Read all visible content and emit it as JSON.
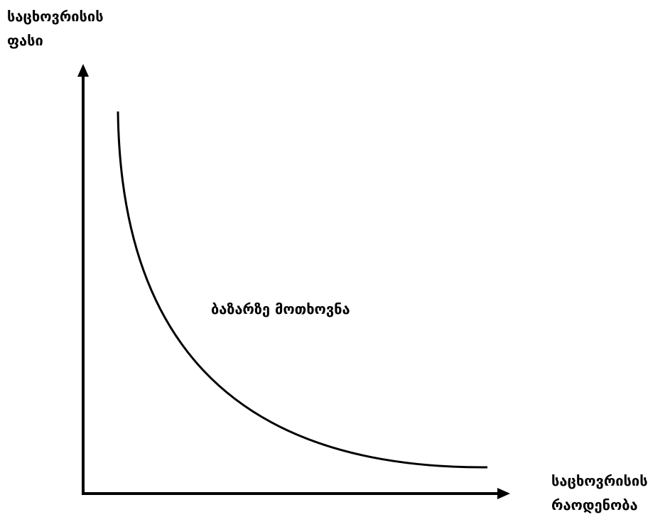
{
  "diagram": {
    "y_axis_label": [
      "საცხოვრისის",
      "ფასი"
    ],
    "x_axis_label": [
      "საცხოვრისის",
      "რაოდენობა"
    ],
    "curve_label": "ბაზარზე მოთხოვნა",
    "line_color": "#000000"
  }
}
